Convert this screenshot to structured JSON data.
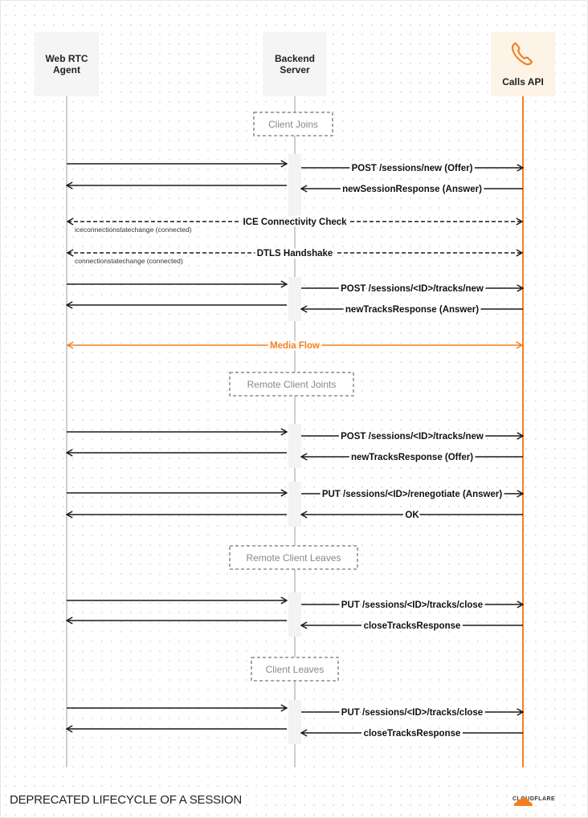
{
  "participants": [
    {
      "name": "Web RTC\nAgent",
      "lines": [
        "Web RTC",
        "Agent"
      ]
    },
    {
      "name": "Backend\nServer",
      "lines": [
        "Backend",
        "Server"
      ]
    },
    {
      "name": "Calls API",
      "lines": [
        "Calls API"
      ],
      "icon": "phone-icon"
    }
  ],
  "colors": {
    "accent": "#f38020",
    "line": "#bdbdbd",
    "arrow": "#1a1a1a",
    "calls_box": "#fdf3e7",
    "box": "#f5f5f6"
  },
  "sections": [
    "Client Joins",
    "Remote Client Joints",
    "Remote Client Leaves",
    "Client Leaves"
  ],
  "messages": [
    {
      "from": "agent",
      "to": "backend",
      "label": ""
    },
    {
      "from": "backend",
      "to": "calls",
      "label": "POST /sessions/new (Offer)"
    },
    {
      "from": "backend",
      "to": "agent",
      "label": ""
    },
    {
      "from": "calls",
      "to": "backend",
      "label": "newSessionResponse (Answer)"
    },
    {
      "from": "agent",
      "to": "calls",
      "both": true,
      "dashed": true,
      "label": "ICE Connectivity Check",
      "note": "iceconnectionstatechange (connected)"
    },
    {
      "from": "agent",
      "to": "calls",
      "both": true,
      "dashed": true,
      "label": "DTLS Handshake",
      "note": "connectionstatechange (connected)"
    },
    {
      "from": "agent",
      "to": "backend",
      "label": ""
    },
    {
      "from": "backend",
      "to": "calls",
      "label": "POST /sessions/<ID>/tracks/new"
    },
    {
      "from": "backend",
      "to": "agent",
      "label": ""
    },
    {
      "from": "calls",
      "to": "backend",
      "label": "newTracksResponse (Answer)"
    },
    {
      "from": "agent",
      "to": "calls",
      "both": true,
      "media": true,
      "label": "Media Flow"
    },
    {
      "from": "agent",
      "to": "backend",
      "label": ""
    },
    {
      "from": "backend",
      "to": "calls",
      "label": "POST /sessions/<ID>/tracks/new"
    },
    {
      "from": "backend",
      "to": "agent",
      "label": ""
    },
    {
      "from": "calls",
      "to": "backend",
      "label": "newTracksResponse (Offer)"
    },
    {
      "from": "agent",
      "to": "backend",
      "label": ""
    },
    {
      "from": "backend",
      "to": "calls",
      "label": "PUT /sessions/<ID>/renegotiate (Answer)"
    },
    {
      "from": "backend",
      "to": "agent",
      "label": ""
    },
    {
      "from": "calls",
      "to": "backend",
      "label": "OK"
    },
    {
      "from": "agent",
      "to": "backend",
      "label": ""
    },
    {
      "from": "backend",
      "to": "calls",
      "label": "PUT /sessions/<ID>/tracks/close"
    },
    {
      "from": "backend",
      "to": "agent",
      "label": ""
    },
    {
      "from": "calls",
      "to": "backend",
      "label": "closeTracksResponse"
    },
    {
      "from": "agent",
      "to": "backend",
      "label": ""
    },
    {
      "from": "backend",
      "to": "calls",
      "label": "PUT /sessions/<ID>/tracks/close"
    },
    {
      "from": "backend",
      "to": "agent",
      "label": ""
    },
    {
      "from": "calls",
      "to": "backend",
      "label": "closeTracksResponse"
    }
  ],
  "footer": {
    "title": "DEPRECATED LIFECYCLE OF A SESSION",
    "logo": "CLOUDFLARE"
  }
}
